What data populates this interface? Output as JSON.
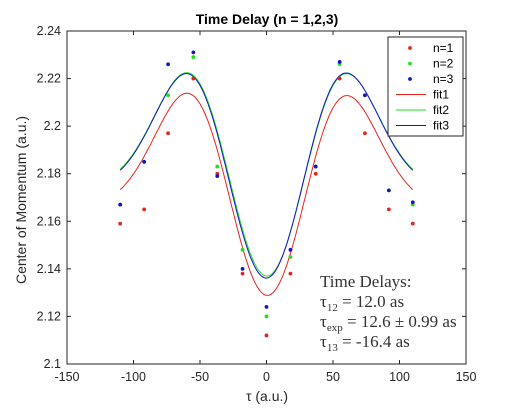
{
  "chart_data": {
    "type": "line",
    "title": "Time Delay (n = 1,2,3)",
    "xlabel": "τ (a.u.)",
    "ylabel": "Center of Momentum (a.u.)",
    "xlim": [
      -150,
      150
    ],
    "ylim": [
      2.1,
      2.24
    ],
    "xticks": [
      -150,
      -100,
      -50,
      0,
      50,
      100,
      150
    ],
    "yticks": [
      2.1,
      2.12,
      2.14,
      2.16,
      2.18,
      2.2,
      2.22,
      2.24
    ],
    "ytick_labels": [
      "2.1",
      "2.12",
      "2.14",
      "2.16",
      "2.18",
      "2.2",
      "2.22",
      "2.24"
    ],
    "grid": false,
    "legend_position": "top-right",
    "series": [
      {
        "name": "n=1",
        "kind": "scatter",
        "color": "#e8231c",
        "x": [
          -110,
          -92,
          -74,
          -55,
          -37,
          -18,
          0,
          18,
          37,
          55,
          74,
          92,
          110
        ],
        "y": [
          2.159,
          2.165,
          2.197,
          2.22,
          2.18,
          2.138,
          2.112,
          2.138,
          2.18,
          2.22,
          2.197,
          2.165,
          2.159
        ]
      },
      {
        "name": "n=2",
        "kind": "scatter",
        "color": "#22dd22",
        "x": [
          -110,
          -92,
          -74,
          -55,
          -37,
          -18,
          0,
          18,
          37,
          55,
          74,
          92,
          110
        ],
        "y": [
          2.167,
          2.185,
          2.213,
          2.229,
          2.183,
          2.148,
          2.12,
          2.145,
          2.183,
          2.226,
          2.213,
          2.173,
          2.167
        ]
      },
      {
        "name": "n=3",
        "kind": "scatter",
        "color": "#1515c8",
        "x": [
          -110,
          -92,
          -74,
          -55,
          -37,
          -18,
          0,
          18,
          37,
          55,
          74,
          92,
          110
        ],
        "y": [
          2.167,
          2.185,
          2.226,
          2.231,
          2.179,
          2.14,
          2.124,
          2.148,
          2.183,
          2.227,
          2.213,
          2.173,
          2.168
        ]
      },
      {
        "name": "fit1",
        "kind": "line",
        "color": "#e8231c",
        "offset": 2.166,
        "amplitude": 0.054,
        "center": 1.2,
        "peak": 54,
        "width": 28
      },
      {
        "name": "fit2",
        "kind": "line",
        "color": "#22dd22",
        "offset": 2.1745,
        "amplitude": 0.0545,
        "center": 0.5,
        "peak": 54,
        "width": 28
      },
      {
        "name": "fit3",
        "kind": "line",
        "color": "#1515c8",
        "offset": 2.174,
        "amplitude": 0.055,
        "center": -0.3,
        "peak": 54,
        "width": 28
      }
    ],
    "annotations": [
      {
        "text": "Time Delays:"
      },
      {
        "base": "τ",
        "sub": "12",
        "rest": " = 12.0 as"
      },
      {
        "base": "τ",
        "sub": "exp",
        "rest": " = 12.6 ± 0.99 as"
      },
      {
        "base": "τ",
        "sub": "13",
        "rest": " = -16.4 as"
      }
    ]
  }
}
